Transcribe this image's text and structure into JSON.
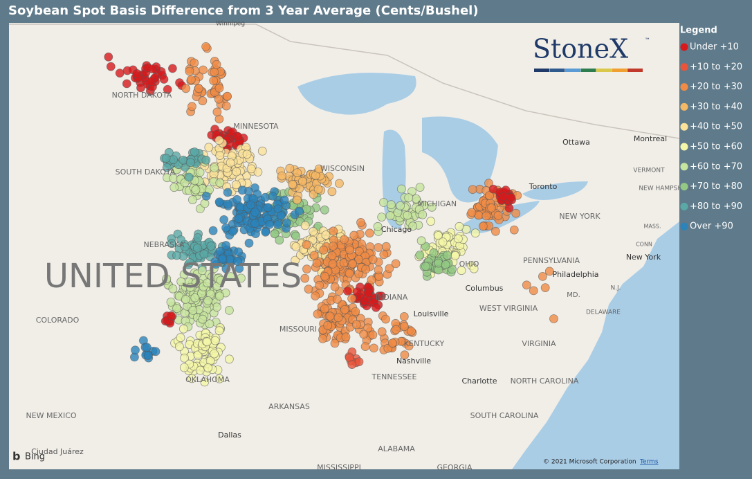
{
  "header": {
    "title": "Soybean Spot Basis Difference from 3 Year Average (Cents/Bushel)"
  },
  "logo": {
    "text": "StoneX",
    "mark": "™"
  },
  "legend": {
    "title": "Legend",
    "items": [
      {
        "label": "Under +10",
        "color": "#d7191c"
      },
      {
        "label": "+10 to +20",
        "color": "#e8553b"
      },
      {
        "label": "+20 to +30",
        "color": "#f08c46"
      },
      {
        "label": "+30 to +40",
        "color": "#f5b865"
      },
      {
        "label": "+40 to +50",
        "color": "#fbe29a"
      },
      {
        "label": "+50 to +60",
        "color": "#f4f6a8"
      },
      {
        "label": "+60 to +70",
        "color": "#c7e59e"
      },
      {
        "label": "+70 to +80",
        "color": "#93c985"
      },
      {
        "label": "+80 to +90",
        "color": "#5aa9a6"
      },
      {
        "label": "Over +90",
        "color": "#2b83ba"
      }
    ]
  },
  "map": {
    "labels": [
      "Winnipeg",
      "NORTH DAKOTA",
      "MINNESOTA",
      "SOUTH DAKOTA",
      "WISCONSIN",
      "MICHIGAN",
      "Chicago",
      "NEBRASKA",
      "UNITED STATES",
      "Ottawa",
      "Montreal",
      "VERMONT",
      "NEW HAMPSHIRE",
      "Toronto",
      "NEW YORK",
      "MASS.",
      "CONN",
      "New York",
      "PENNSYLVANIA",
      "Philadelphia",
      "N.J.",
      "MD.",
      "DELAWARE",
      "OHIO",
      "Columbus",
      "INDIANA",
      "COLORADO",
      "MISSOURI",
      "Louisville",
      "WEST VIRGINIA",
      "KENTUCKY",
      "VIRGINIA",
      "Nashville",
      "TENNESSEE",
      "Charlotte",
      "NORTH CAROLINA",
      "OKLAHOMA",
      "ARKANSAS",
      "SOUTH CAROLINA",
      "NEW MEXICO",
      "Dallas",
      "ALABAMA",
      "MISSISSIPPI",
      "Ciudad Juárez",
      "GEORGIA"
    ],
    "attribution": "© 2021 Microsoft Corporation",
    "terms": "Terms",
    "provider": "Bing"
  }
}
